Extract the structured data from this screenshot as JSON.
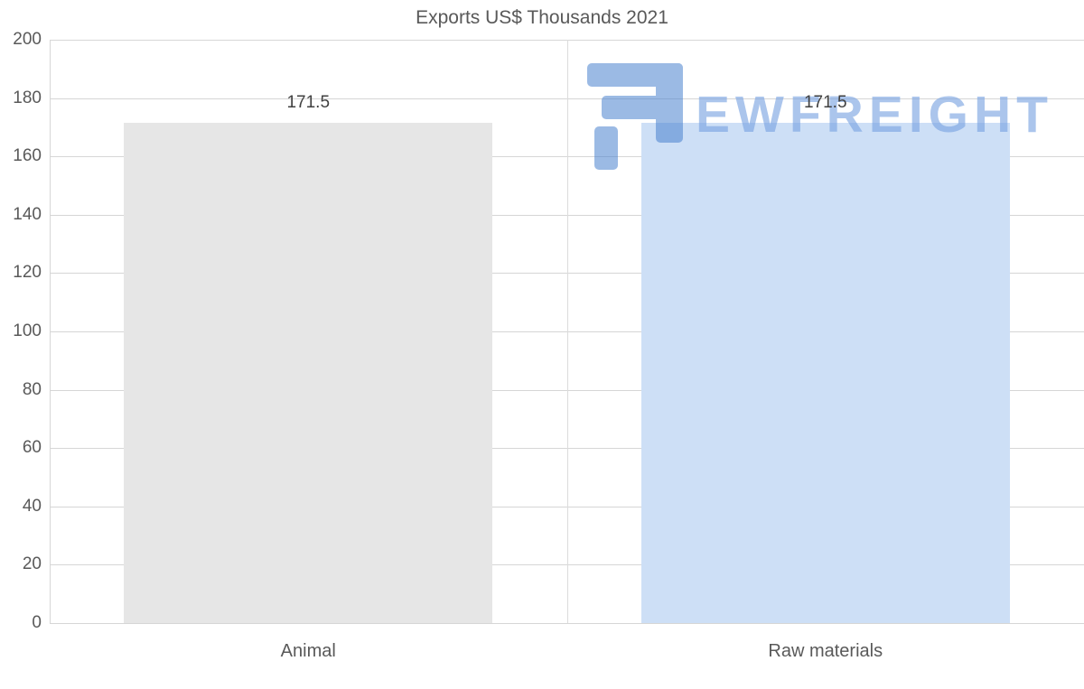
{
  "chart_data": {
    "type": "bar",
    "title": "Exports US$ Thousands 2021",
    "categories": [
      "Animal",
      "Raw materials"
    ],
    "values": [
      171.5,
      171.5
    ],
    "value_labels": [
      "171.5",
      "171.5"
    ],
    "bar_colors": [
      "#e6e6e6",
      "#cddff6"
    ],
    "ylim": [
      0,
      200
    ],
    "yticks": [
      0,
      20,
      40,
      60,
      80,
      100,
      120,
      140,
      160,
      180,
      200
    ],
    "grid": "horizontal",
    "legend": "none",
    "xlabel": "",
    "ylabel": ""
  },
  "watermark": {
    "text": "EWFREIGHT",
    "icon_color": "#4a82cf",
    "text_color": "#78a2e0"
  },
  "colors": {
    "background": "#ffffff",
    "gridline": "#d6d6d6",
    "axis_text": "#595959",
    "value_label_text": "#404040"
  }
}
